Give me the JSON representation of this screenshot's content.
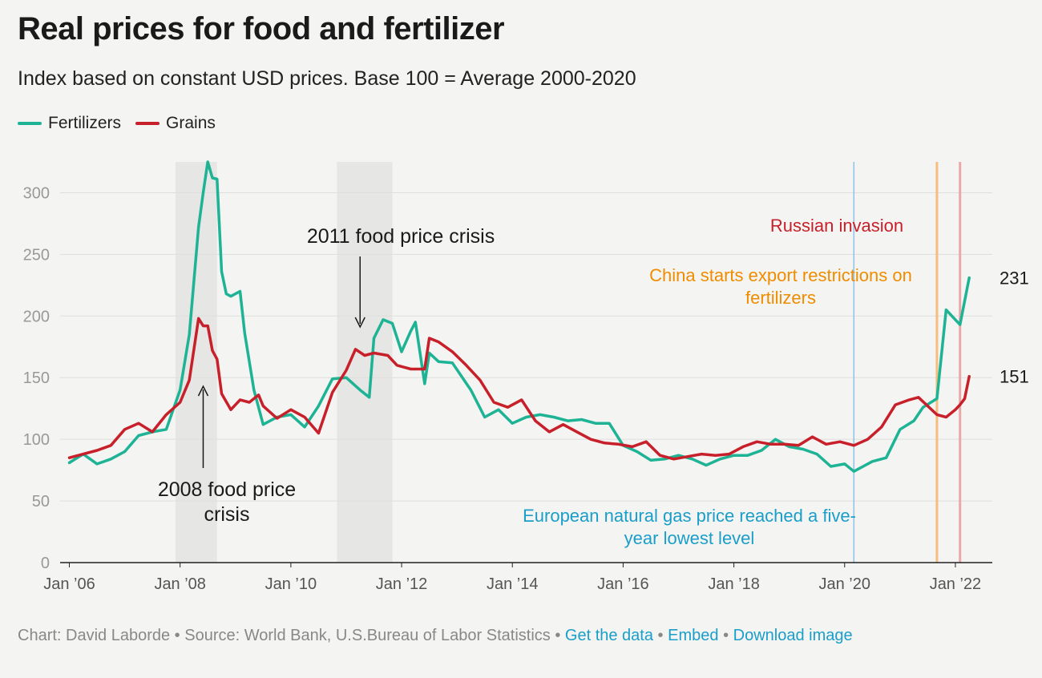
{
  "title": "Real prices for food and fertilizer",
  "subtitle": "Index based on constant USD prices. Base 100 = Average 2000-2020",
  "legend": [
    {
      "name": "Fertilizers",
      "color": "#1db394"
    },
    {
      "name": "Grains",
      "color": "#c8202a"
    }
  ],
  "footer": {
    "credit": "Chart: David Laborde",
    "source": "Source: World Bank, U.S.Bureau of Labor Statistics",
    "separator": "•",
    "links": [
      "Get the data",
      "Embed",
      "Download image"
    ]
  },
  "chart_data": {
    "type": "line",
    "ylim": [
      0,
      325
    ],
    "yticks": [
      0,
      50,
      100,
      150,
      200,
      250,
      300
    ],
    "xlim": [
      "2005-11",
      "2022-09"
    ],
    "xticks": [
      {
        "label": "Jan ’06",
        "x": "2006-01"
      },
      {
        "label": "Jan ’08",
        "x": "2008-01"
      },
      {
        "label": "Jan ’10",
        "x": "2010-01"
      },
      {
        "label": "Jan ’12",
        "x": "2012-01"
      },
      {
        "label": "Jan ’14",
        "x": "2014-01"
      },
      {
        "label": "Jan ’16",
        "x": "2016-01"
      },
      {
        "label": "Jan ’18",
        "x": "2018-01"
      },
      {
        "label": "Jan ’20",
        "x": "2020-01"
      },
      {
        "label": "Jan ’22",
        "x": "2022-01"
      }
    ],
    "grid": true,
    "legend_position": "top-left",
    "shaded_periods": [
      {
        "start": "2007-12",
        "end": "2008-09"
      },
      {
        "start": "2010-11",
        "end": "2011-11"
      }
    ],
    "vlines": [
      {
        "x": "2020-03",
        "color": "#8fc3e4"
      },
      {
        "x": "2021-09",
        "color": "#f6bd7c"
      },
      {
        "x": "2022-02",
        "color": "#eca7a7"
      }
    ],
    "annotations": [
      {
        "id": "crisis-2008",
        "lines": [
          "2008 food price",
          "crisis"
        ],
        "color": "#1a1a1a"
      },
      {
        "id": "crisis-2011",
        "lines": [
          "2011 food price crisis"
        ],
        "color": "#1a1a1a"
      },
      {
        "id": "russian-invasion",
        "lines": [
          "Russian invasion"
        ],
        "color": "#c8202a"
      },
      {
        "id": "china-export",
        "lines": [
          "China starts export restrictions on",
          "fertilizers"
        ],
        "color": "#f08c00"
      },
      {
        "id": "eu-gas",
        "lines": [
          "European natural gas price reached a five-",
          "year lowest level"
        ],
        "color": "#1a9ec9"
      }
    ],
    "end_labels": [
      "231",
      "151"
    ],
    "series": [
      {
        "name": "Fertilizers",
        "color": "#1db394",
        "points": [
          [
            "2006-01",
            81
          ],
          [
            "2006-04",
            88
          ],
          [
            "2006-07",
            80
          ],
          [
            "2006-10",
            84
          ],
          [
            "2007-01",
            90
          ],
          [
            "2007-04",
            103
          ],
          [
            "2007-07",
            106
          ],
          [
            "2007-10",
            108
          ],
          [
            "2008-01",
            140
          ],
          [
            "2008-03",
            185
          ],
          [
            "2008-05",
            272
          ],
          [
            "2008-06",
            300
          ],
          [
            "2008-07",
            325
          ],
          [
            "2008-08",
            312
          ],
          [
            "2008-09",
            311
          ],
          [
            "2008-10",
            236
          ],
          [
            "2008-11",
            218
          ],
          [
            "2008-12",
            216
          ],
          [
            "2009-02",
            220
          ],
          [
            "2009-03",
            186
          ],
          [
            "2009-05",
            140
          ],
          [
            "2009-07",
            112
          ],
          [
            "2009-10",
            118
          ],
          [
            "2010-01",
            120
          ],
          [
            "2010-04",
            110
          ],
          [
            "2010-07",
            127
          ],
          [
            "2010-10",
            149
          ],
          [
            "2011-01",
            150
          ],
          [
            "2011-04",
            140
          ],
          [
            "2011-06",
            134
          ],
          [
            "2011-07",
            182
          ],
          [
            "2011-09",
            197
          ],
          [
            "2011-11",
            194
          ],
          [
            "2012-01",
            171
          ],
          [
            "2012-03",
            188
          ],
          [
            "2012-04",
            195
          ],
          [
            "2012-06",
            145
          ],
          [
            "2012-07",
            170
          ],
          [
            "2012-09",
            163
          ],
          [
            "2012-12",
            162
          ],
          [
            "2013-04",
            140
          ],
          [
            "2013-07",
            118
          ],
          [
            "2013-10",
            124
          ],
          [
            "2014-01",
            113
          ],
          [
            "2014-04",
            118
          ],
          [
            "2014-07",
            120
          ],
          [
            "2014-10",
            118
          ],
          [
            "2015-01",
            115
          ],
          [
            "2015-04",
            116
          ],
          [
            "2015-07",
            113
          ],
          [
            "2015-10",
            113
          ],
          [
            "2016-01",
            95
          ],
          [
            "2016-04",
            90
          ],
          [
            "2016-07",
            83
          ],
          [
            "2016-10",
            84
          ],
          [
            "2017-01",
            87
          ],
          [
            "2017-04",
            84
          ],
          [
            "2017-07",
            79
          ],
          [
            "2017-10",
            84
          ],
          [
            "2018-01",
            87
          ],
          [
            "2018-04",
            87
          ],
          [
            "2018-07",
            91
          ],
          [
            "2018-10",
            100
          ],
          [
            "2019-01",
            94
          ],
          [
            "2019-04",
            92
          ],
          [
            "2019-07",
            88
          ],
          [
            "2019-10",
            78
          ],
          [
            "2020-01",
            80
          ],
          [
            "2020-03",
            74
          ],
          [
            "2020-05",
            78
          ],
          [
            "2020-07",
            82
          ],
          [
            "2020-10",
            85
          ],
          [
            "2021-01",
            108
          ],
          [
            "2021-04",
            115
          ],
          [
            "2021-06",
            126
          ],
          [
            "2021-09",
            133
          ],
          [
            "2021-11",
            205
          ],
          [
            "2022-01",
            197
          ],
          [
            "2022-02",
            193
          ],
          [
            "2022-04",
            231
          ]
        ]
      },
      {
        "name": "Grains",
        "color": "#c8202a",
        "points": [
          [
            "2006-01",
            85
          ],
          [
            "2006-04",
            88
          ],
          [
            "2006-07",
            91
          ],
          [
            "2006-10",
            95
          ],
          [
            "2007-01",
            108
          ],
          [
            "2007-04",
            113
          ],
          [
            "2007-07",
            106
          ],
          [
            "2007-10",
            120
          ],
          [
            "2008-01",
            130
          ],
          [
            "2008-03",
            148
          ],
          [
            "2008-05",
            198
          ],
          [
            "2008-06",
            192
          ],
          [
            "2008-07",
            192
          ],
          [
            "2008-08",
            172
          ],
          [
            "2008-09",
            165
          ],
          [
            "2008-10",
            137
          ],
          [
            "2008-12",
            124
          ],
          [
            "2009-02",
            132
          ],
          [
            "2009-04",
            130
          ],
          [
            "2009-06",
            136
          ],
          [
            "2009-07",
            127
          ],
          [
            "2009-10",
            117
          ],
          [
            "2010-01",
            124
          ],
          [
            "2010-04",
            118
          ],
          [
            "2010-07",
            105
          ],
          [
            "2010-10",
            138
          ],
          [
            "2011-01",
            156
          ],
          [
            "2011-03",
            173
          ],
          [
            "2011-05",
            168
          ],
          [
            "2011-07",
            170
          ],
          [
            "2011-10",
            168
          ],
          [
            "2011-12",
            160
          ],
          [
            "2012-03",
            157
          ],
          [
            "2012-06",
            157
          ],
          [
            "2012-07",
            182
          ],
          [
            "2012-09",
            179
          ],
          [
            "2012-12",
            171
          ],
          [
            "2013-03",
            160
          ],
          [
            "2013-06",
            148
          ],
          [
            "2013-09",
            130
          ],
          [
            "2013-12",
            126
          ],
          [
            "2014-03",
            132
          ],
          [
            "2014-06",
            115
          ],
          [
            "2014-09",
            106
          ],
          [
            "2014-12",
            112
          ],
          [
            "2015-03",
            106
          ],
          [
            "2015-06",
            100
          ],
          [
            "2015-09",
            97
          ],
          [
            "2015-12",
            96
          ],
          [
            "2016-03",
            94
          ],
          [
            "2016-06",
            98
          ],
          [
            "2016-09",
            87
          ],
          [
            "2016-12",
            84
          ],
          [
            "2017-03",
            86
          ],
          [
            "2017-06",
            88
          ],
          [
            "2017-09",
            87
          ],
          [
            "2017-12",
            88
          ],
          [
            "2018-03",
            94
          ],
          [
            "2018-06",
            98
          ],
          [
            "2018-09",
            96
          ],
          [
            "2018-12",
            96
          ],
          [
            "2019-03",
            95
          ],
          [
            "2019-06",
            102
          ],
          [
            "2019-09",
            96
          ],
          [
            "2019-12",
            98
          ],
          [
            "2020-03",
            95
          ],
          [
            "2020-06",
            100
          ],
          [
            "2020-09",
            110
          ],
          [
            "2020-12",
            128
          ],
          [
            "2021-03",
            132
          ],
          [
            "2021-05",
            134
          ],
          [
            "2021-09",
            120
          ],
          [
            "2021-11",
            118
          ],
          [
            "2022-01",
            124
          ],
          [
            "2022-02",
            128
          ],
          [
            "2022-03",
            133
          ],
          [
            "2022-04",
            151
          ]
        ]
      }
    ]
  }
}
